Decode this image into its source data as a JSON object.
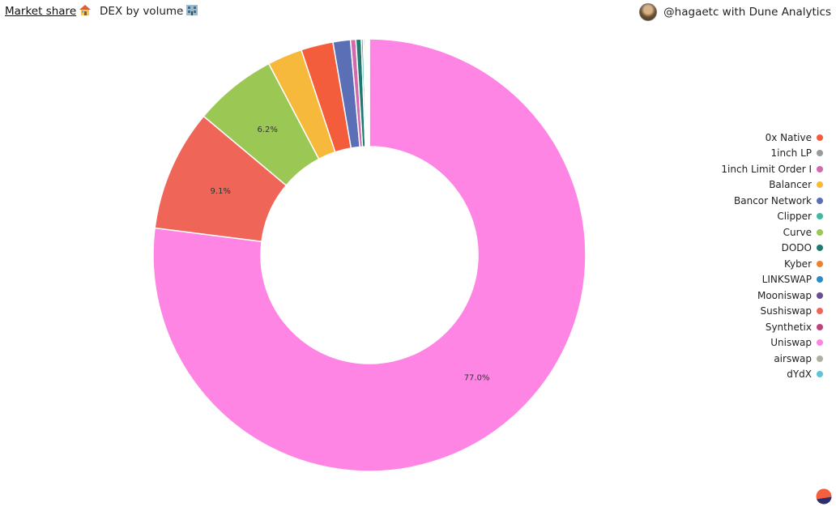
{
  "header": {
    "tab_active": "Market share",
    "tab_active_icon": "house-icon",
    "tab_other": "DEX by volume",
    "tab_other_icon": "bank-icon",
    "attribution": "@hagaetc with Dune Analytics"
  },
  "chart_data": {
    "type": "pie",
    "donut": true,
    "title": "",
    "legend_position": "right",
    "categories": [
      "0x Native",
      "1inch LP",
      "1inch Limit Order I",
      "Balancer",
      "Bancor Network",
      "Clipper",
      "Curve",
      "DODO",
      "Kyber",
      "LINKSWAP",
      "Mooniswap",
      "Sushiswap",
      "Synthetix",
      "Uniswap",
      "airswap",
      "dYdX"
    ],
    "colors": [
      "#f35d3b",
      "#9a9a9a",
      "#d36aae",
      "#f6b93b",
      "#5b6fb6",
      "#3fb8a4",
      "#9bc854",
      "#1e7a6e",
      "#f07f2a",
      "#2b8cc4",
      "#6a4c93",
      "#ef6658",
      "#c2407e",
      "#fe85e3",
      "#b0b0a0",
      "#5cc6d6"
    ],
    "slice_order": [
      "Uniswap",
      "Sushiswap",
      "Curve",
      "Balancer",
      "0x Native",
      "Bancor Network",
      "1inch Limit Order I",
      "DODO",
      "Clipper",
      "Synthetix",
      "LINKSWAP",
      "Kyber",
      "dYdX",
      "Mooniswap",
      "1inch LP",
      "airswap"
    ],
    "values": {
      "Uniswap": 77.0,
      "Sushiswap": 9.1,
      "Curve": 6.2,
      "Balancer": 2.6,
      "0x Native": 2.4,
      "Bancor Network": 1.3,
      "1inch Limit Order I": 0.4,
      "DODO": 0.4,
      "Clipper": 0.15,
      "Synthetix": 0.1,
      "LINKSWAP": 0.1,
      "Kyber": 0.08,
      "dYdX": 0.06,
      "Mooniswap": 0.05,
      "1inch LP": 0.03,
      "airswap": 0.03
    },
    "labeled_slices": [
      "Uniswap",
      "Sushiswap",
      "Curve"
    ],
    "data_labels": {
      "Uniswap": "77.0%",
      "Sushiswap": "9.1%",
      "Curve": "6.2%"
    }
  }
}
